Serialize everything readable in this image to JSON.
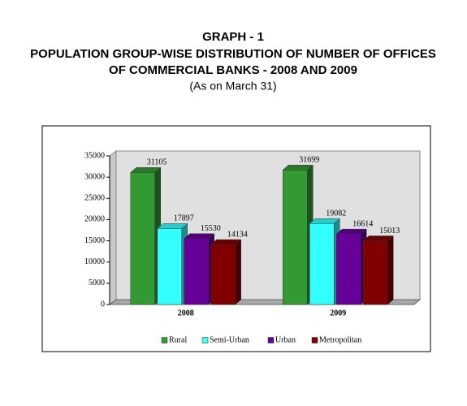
{
  "chart_data": {
    "type": "bar3d",
    "title": "GRAPH - 1",
    "subtitle": [
      "POPULATION GROUP-WISE DISTRIBUTION OF NUMBER OF OFFICES",
      "OF COMMERCIAL BANKS - 2008 AND 2009"
    ],
    "note": "(As on March 31)",
    "categories": [
      "2008",
      "2009"
    ],
    "series": [
      {
        "name": "Rural",
        "color": "#339933",
        "values": [
          31105,
          31699
        ]
      },
      {
        "name": "Semi-Urban",
        "color": "#33ffff",
        "values": [
          17897,
          19082
        ]
      },
      {
        "name": "Urban",
        "color": "#660099",
        "values": [
          15530,
          16614
        ]
      },
      {
        "name": "Metropolitan",
        "color": "#800000",
        "values": [
          14134,
          15013
        ]
      }
    ],
    "ylim": [
      0,
      35000
    ],
    "yticks": [
      0,
      5000,
      10000,
      15000,
      20000,
      25000,
      30000,
      35000
    ],
    "grid": false,
    "legend": "bottom"
  }
}
